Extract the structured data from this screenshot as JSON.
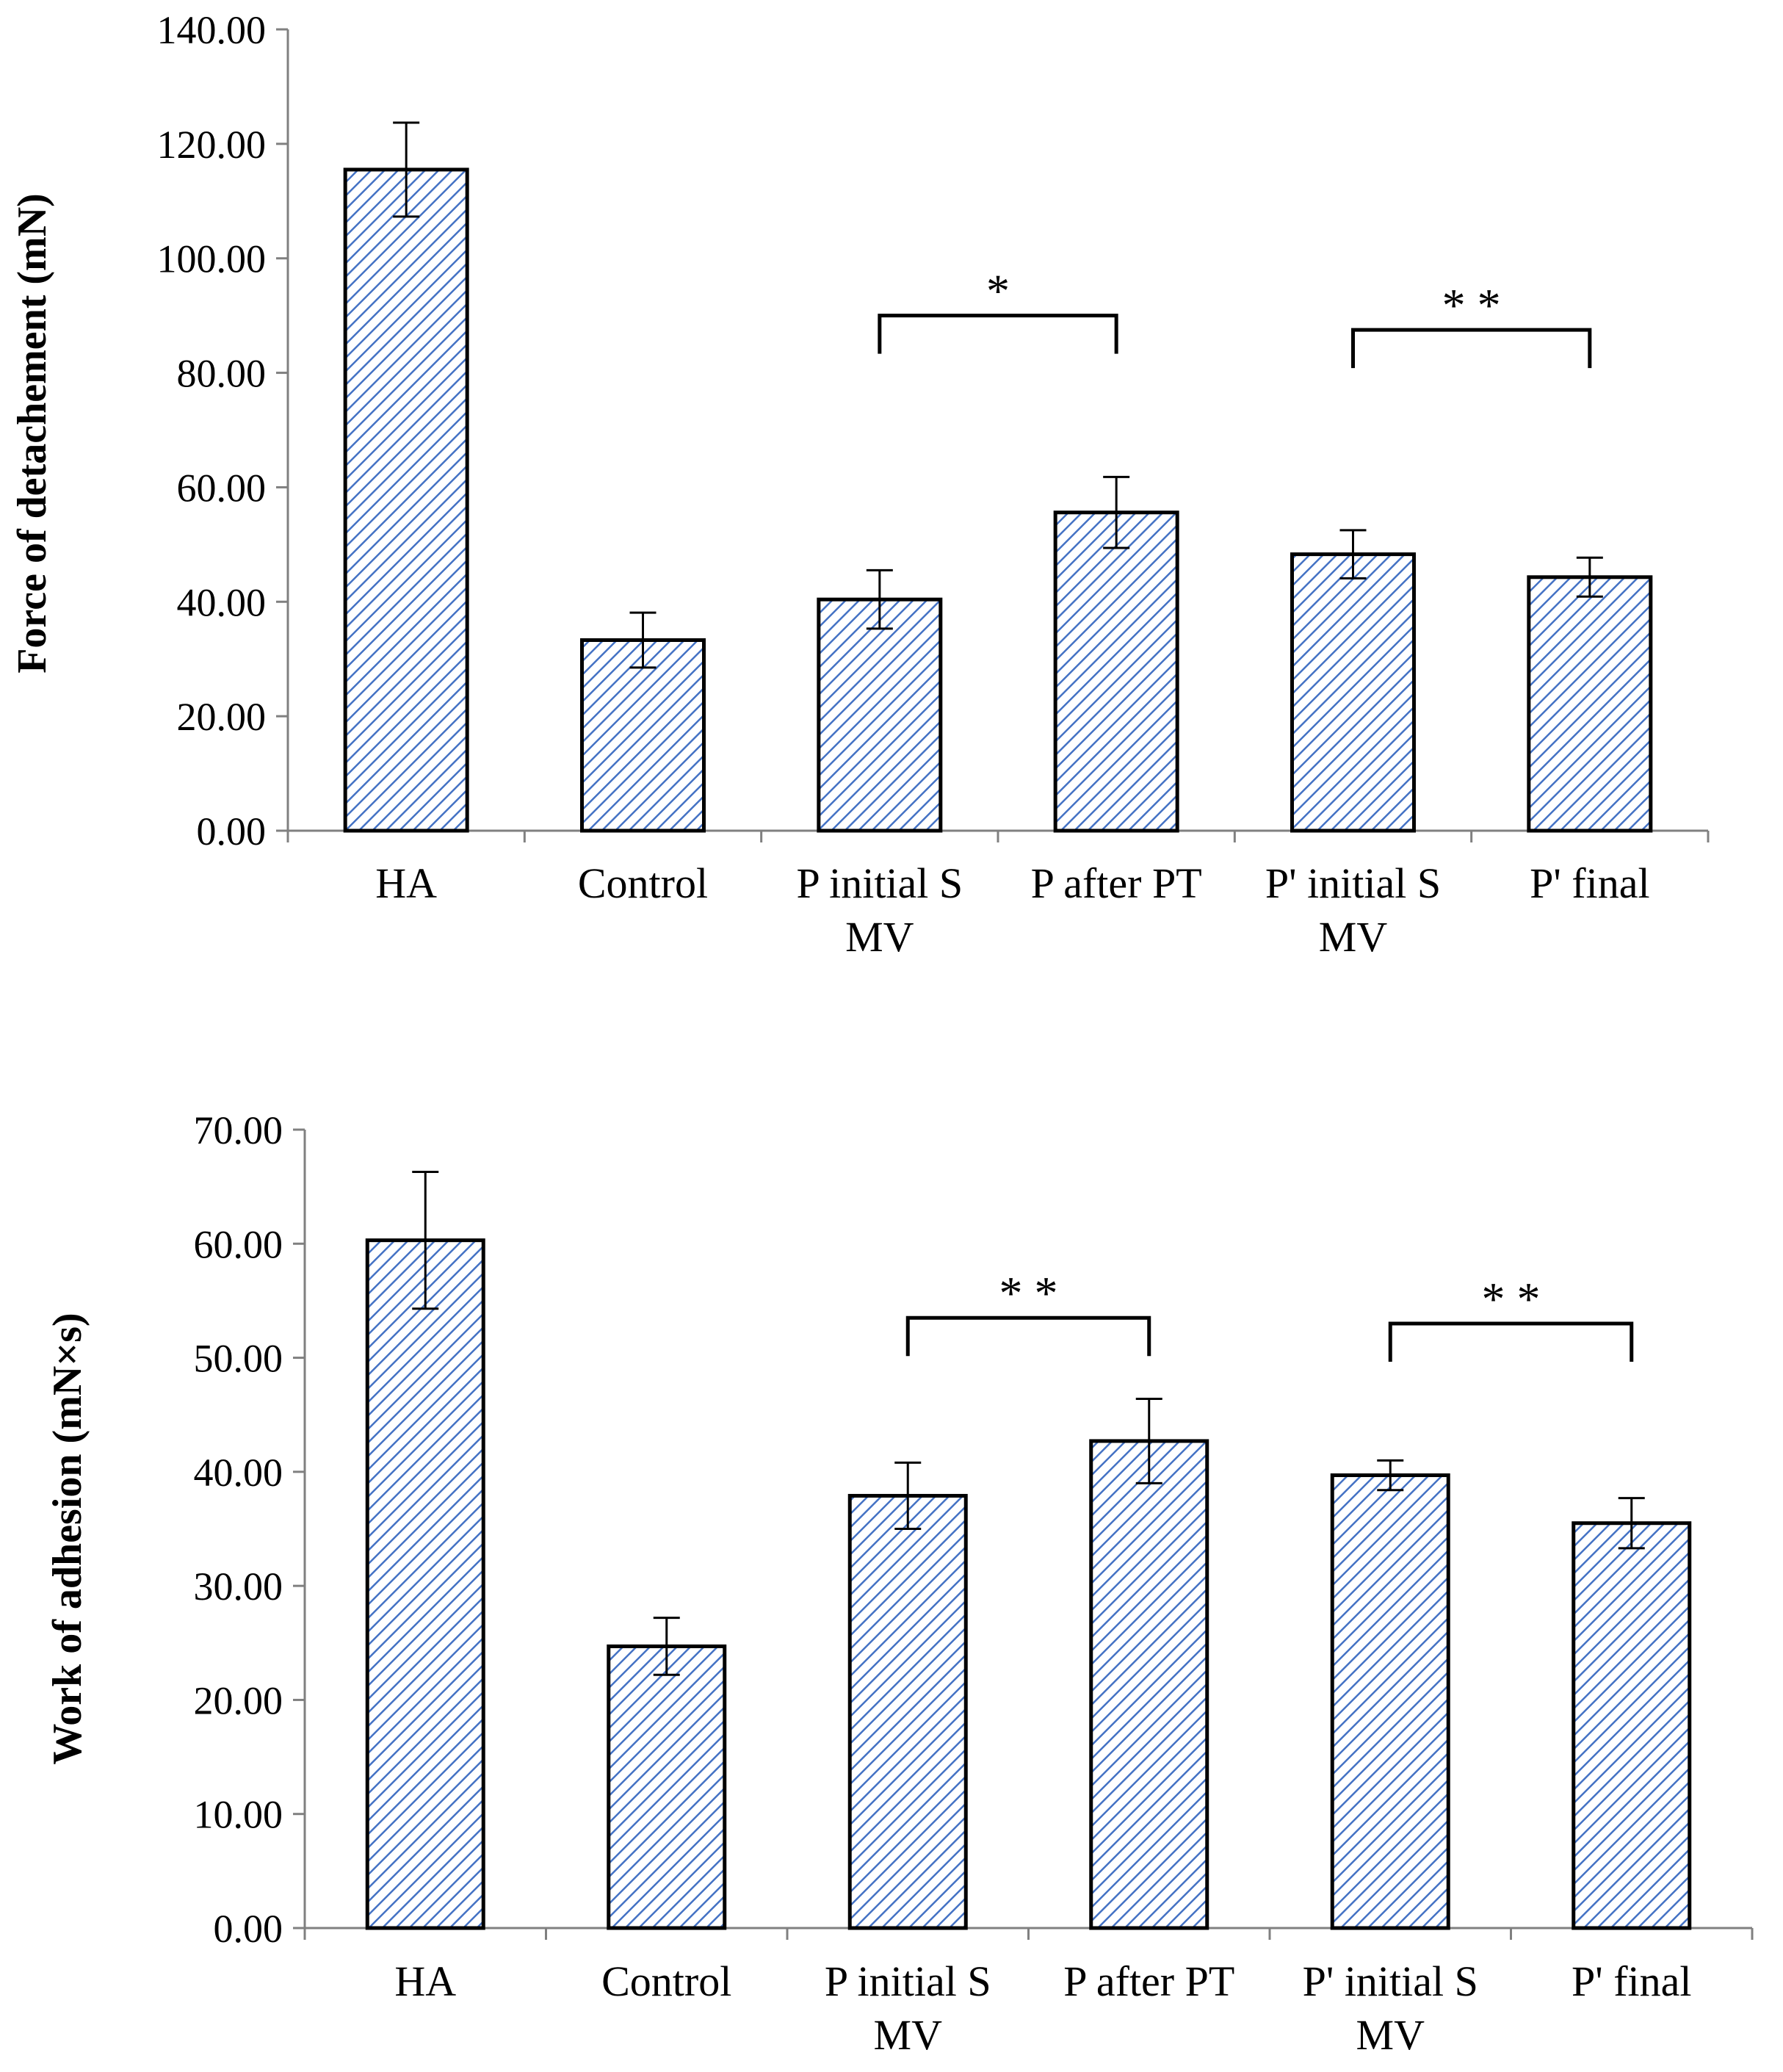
{
  "chart_data": [
    {
      "type": "bar",
      "title": "",
      "xlabel": "",
      "ylabel": "Force of detachement (mN)",
      "ylim": [
        0,
        140
      ],
      "ystep": 20,
      "decimals": 2,
      "categories": [
        [
          "HA"
        ],
        [
          "Control"
        ],
        [
          "P initial S",
          "MV"
        ],
        [
          "P after PT"
        ],
        [
          "P' initial S",
          "MV"
        ],
        [
          "P' final"
        ]
      ],
      "series": [
        {
          "name": "Force of detachement",
          "values": [
            115.5,
            33.3,
            40.4,
            55.6,
            48.3,
            44.3
          ],
          "errors": [
            8.2,
            4.8,
            5.1,
            6.2,
            4.2,
            3.4
          ],
          "color": "#4472C4"
        }
      ],
      "annotations": [
        {
          "text": "*",
          "from": 2,
          "to": 3,
          "y": 90
        },
        {
          "text": "* *",
          "from": 4,
          "to": 5,
          "y": 87.5
        }
      ]
    },
    {
      "type": "bar",
      "title": "",
      "xlabel": "",
      "ylabel": "Work of adhesion (mN×s)",
      "ylim": [
        0,
        70
      ],
      "ystep": 10,
      "decimals": 2,
      "categories": [
        [
          "HA"
        ],
        [
          "Control"
        ],
        [
          "P initial S",
          "MV"
        ],
        [
          "P after PT"
        ],
        [
          "P' initial S",
          "MV"
        ],
        [
          "P' final"
        ]
      ],
      "series": [
        {
          "name": "Work of adhesion",
          "values": [
            60.3,
            24.7,
            37.9,
            42.7,
            39.7,
            35.5
          ],
          "errors": [
            6.0,
            2.5,
            2.9,
            3.7,
            1.3,
            2.2
          ],
          "color": "#4472C4"
        }
      ],
      "annotations": [
        {
          "text": "* *",
          "from": 2,
          "to": 3,
          "y": 53.5
        },
        {
          "text": "* *",
          "from": 4,
          "to": 5,
          "y": 53
        }
      ]
    }
  ]
}
